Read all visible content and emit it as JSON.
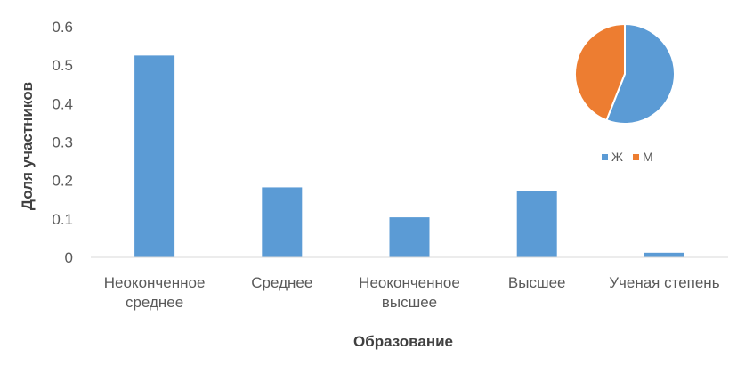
{
  "chart_data": [
    {
      "type": "bar",
      "categories": [
        [
          "Неоконченное",
          "среднее"
        ],
        [
          "Среднее"
        ],
        [
          "Неоконченное",
          "высшее"
        ],
        [
          "Высшее"
        ],
        [
          "Ученая степень"
        ]
      ],
      "values": [
        0.525,
        0.182,
        0.104,
        0.173,
        0.012
      ],
      "xlabel": "Образование",
      "ylabel": "Доля участников",
      "ylim": [
        0,
        0.6
      ],
      "yticks": [
        "0",
        "0.1",
        "0.2",
        "0.3",
        "0.4",
        "0.5",
        "0.6"
      ],
      "grid": false,
      "bar_color": "#5b9bd5"
    },
    {
      "type": "pie",
      "labels": [
        "Ж",
        "М"
      ],
      "values": [
        0.56,
        0.44
      ],
      "colors": [
        "#5b9bd5",
        "#ed7d31"
      ],
      "legend": "bottom"
    }
  ]
}
